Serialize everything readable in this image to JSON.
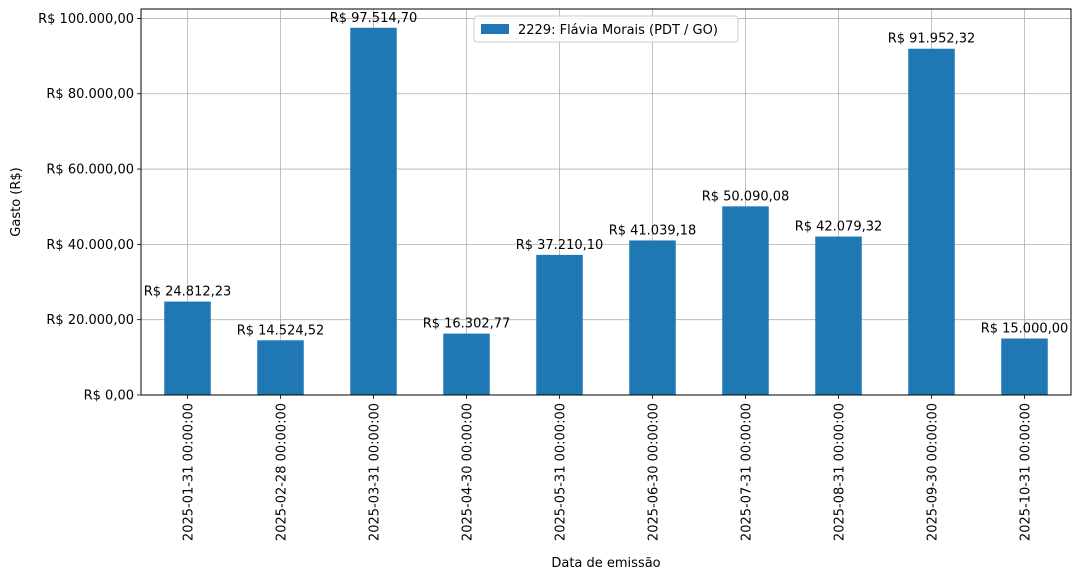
{
  "chart_data": {
    "type": "bar",
    "title": "",
    "xlabel": "Data de emissão",
    "ylabel": "Gasto (R$)",
    "ylim": [
      0,
      102500
    ],
    "yticks": [
      0,
      20000,
      40000,
      60000,
      80000,
      100000
    ],
    "ytick_labels": [
      "R$ 0,00",
      "R$ 20.000,00",
      "R$ 40.000,00",
      "R$ 60.000,00",
      "R$ 80.000,00",
      "R$ 100.000,00"
    ],
    "grid": true,
    "legend_position": "top-center",
    "categories": [
      "2025-01-31 00:00:00",
      "2025-02-28 00:00:00",
      "2025-03-31 00:00:00",
      "2025-04-30 00:00:00",
      "2025-05-31 00:00:00",
      "2025-06-30 00:00:00",
      "2025-07-31 00:00:00",
      "2025-08-31 00:00:00",
      "2025-09-30 00:00:00",
      "2025-10-31 00:00:00"
    ],
    "series": [
      {
        "name": "2229: Flávia Morais (PDT / GO)",
        "color": "#1f77b4",
        "values": [
          24812.23,
          14524.52,
          97514.7,
          16302.77,
          37210.1,
          41039.18,
          50090.08,
          42079.32,
          91952.32,
          15000.0
        ],
        "data_labels": [
          "R$ 24.812,23",
          "R$ 14.524,52",
          "R$ 97.514,70",
          "R$ 16.302,77",
          "R$ 37.210,10",
          "R$ 41.039,18",
          "R$ 50.090,08",
          "R$ 42.079,32",
          "R$ 91.952,32",
          "R$ 15.000,00"
        ]
      }
    ]
  }
}
